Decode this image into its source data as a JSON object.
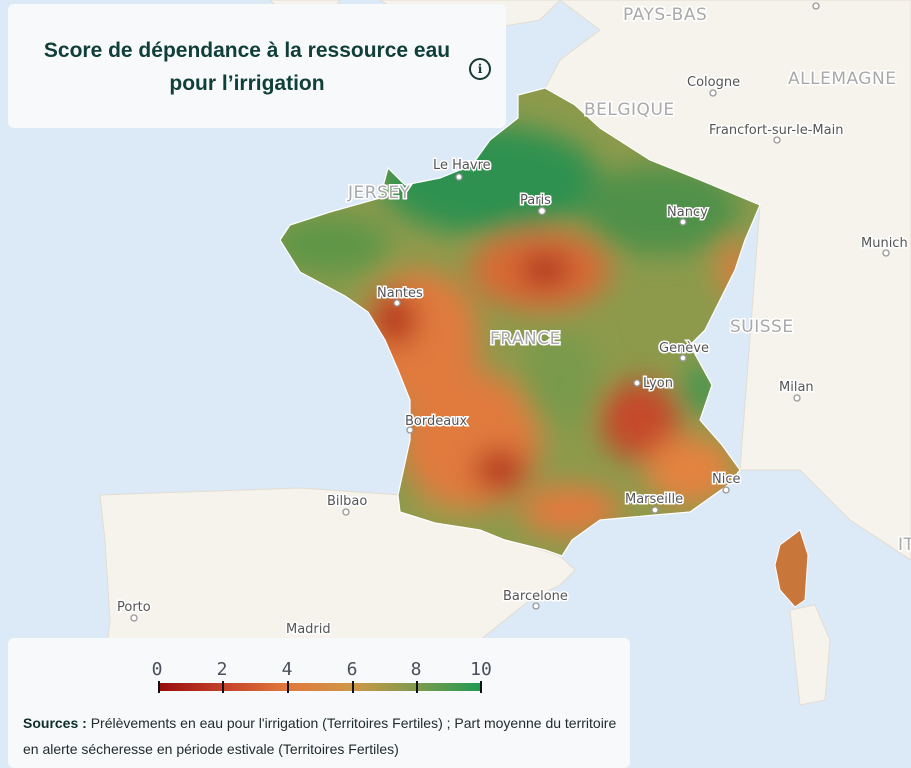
{
  "title": "Score de dépendance à la ressource eau pour l’irrigation",
  "info_icon": "info-circle-icon",
  "map_labels": {
    "countries": [
      "PAYS-BAS",
      "ALLEMAGNE",
      "BELGIQUE",
      "JERSEY",
      "FRANCE",
      "SUISSE",
      "IT"
    ],
    "cities": [
      "Cologne",
      "Francfort-sur-le-Main",
      "Le Havre",
      "Paris",
      "Nancy",
      "Munich",
      "Nantes",
      "Genève",
      "Lyon",
      "Milan",
      "Bordeaux",
      "Nice",
      "Marseille",
      "Bilbao",
      "Porto",
      "Barcelone",
      "Madrid"
    ]
  },
  "legend": {
    "ticks": [
      "0",
      "2",
      "4",
      "6",
      "8",
      "10"
    ],
    "min": 0,
    "max": 10,
    "colors": [
      "#970b0b",
      "#c4402a",
      "#e07a3c",
      "#cf9647",
      "#7f9a4f",
      "#219a52"
    ]
  },
  "sources_label": "Sources :",
  "sources_text": "Prélèvements en eau pour l'irrigation (Territoires Fertiles) ; Part moyenne du territoire en alerte sécheresse en période estivale (Territoires Fertiles)"
}
